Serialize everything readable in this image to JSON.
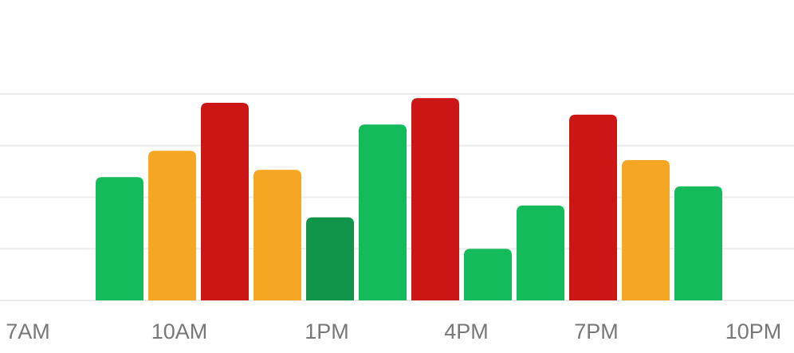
{
  "chart_data": {
    "type": "bar",
    "values": [
      2.39,
      2.9,
      3.83,
      2.53,
      1.61,
      3.41,
      3.92,
      1.0,
      1.84,
      3.6,
      2.72,
      2.21
    ],
    "colors": [
      "#13bb5a",
      "#f5a623",
      "#cc1616",
      "#f5a623",
      "#10944a",
      "#13bb5a",
      "#cc1616",
      "#13bb5a",
      "#13bb5a",
      "#cc1616",
      "#f5a623",
      "#13bb5a"
    ],
    "ylim": [
      0,
      4
    ],
    "yticks": [
      0,
      1,
      2,
      3,
      4
    ],
    "grid": true,
    "xticklabels": [
      "7AM",
      "10AM",
      "1PM",
      "4PM",
      "7PM",
      "10PM"
    ]
  }
}
